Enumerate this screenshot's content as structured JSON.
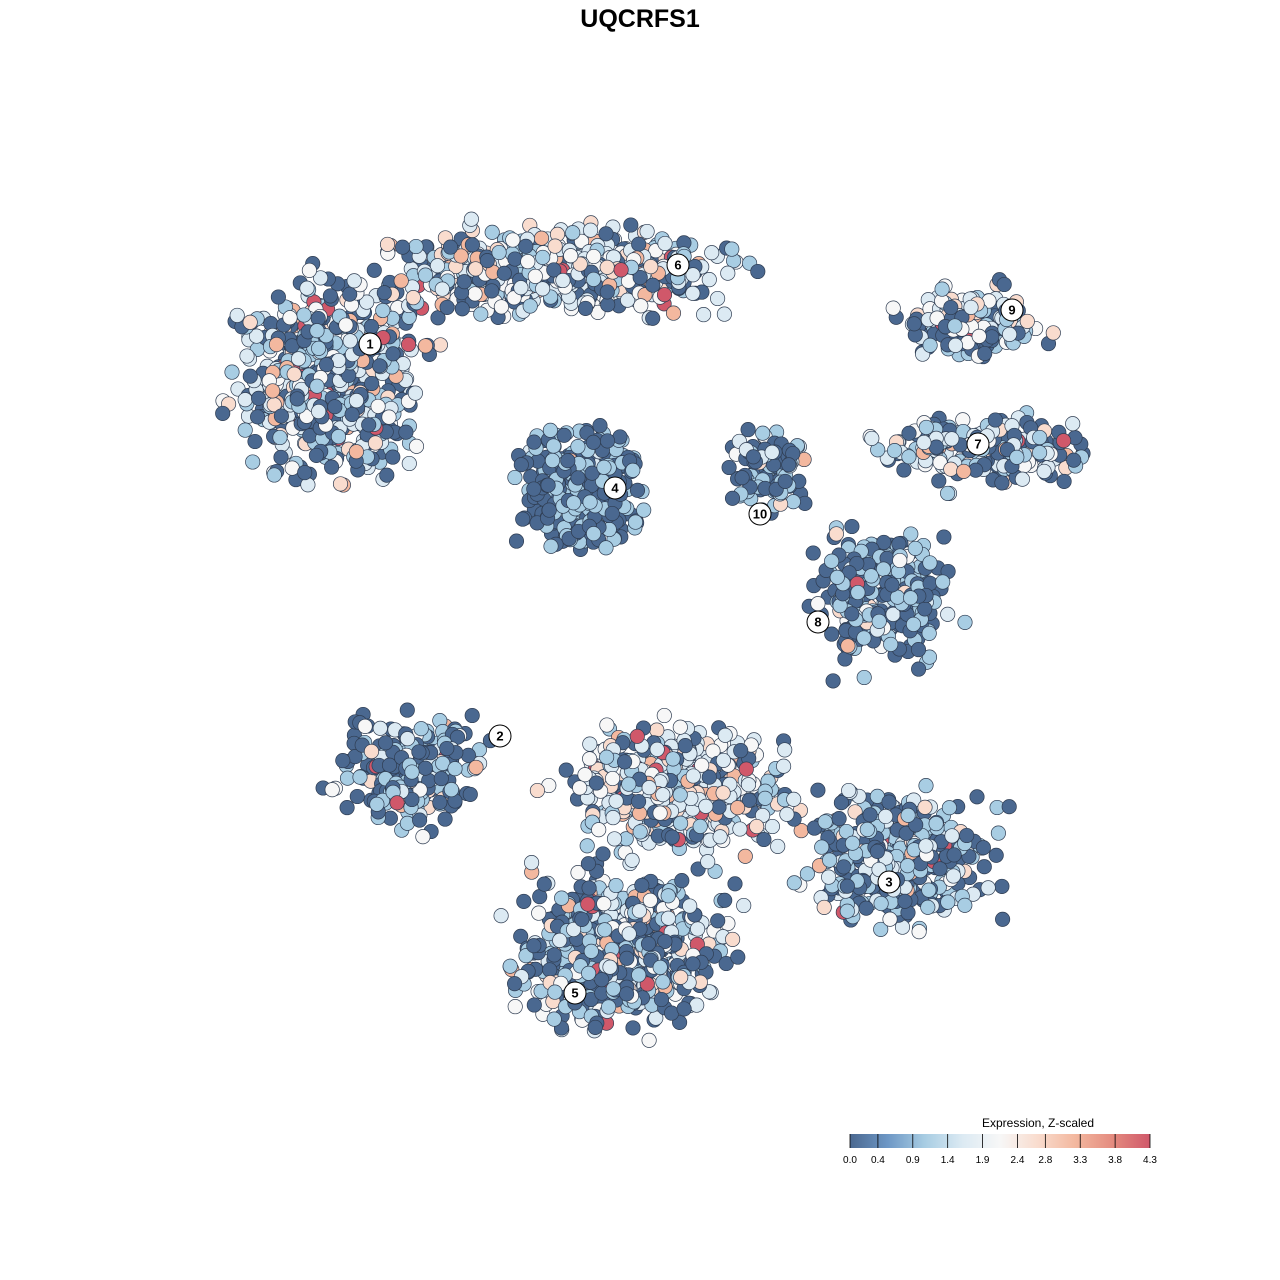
{
  "chart_data": {
    "type": "scatter",
    "title": "UQCRFS1",
    "xlabel": "",
    "ylabel": "",
    "grid": false,
    "legend": {
      "title": "Expression, Z-scaled",
      "placement": "bottom-right",
      "ticks": [
        "0.0",
        "0.4",
        "0.9",
        "1.4",
        "1.9",
        "2.4",
        "2.8",
        "3.3",
        "3.8",
        "4.3"
      ],
      "range": [
        0.0,
        4.3
      ],
      "colors": [
        "#4a6890",
        "#6d97c5",
        "#a8cde3",
        "#dceaf3",
        "#f7f7f7",
        "#f9dcce",
        "#f3b89f",
        "#e48b7f",
        "#d0586a"
      ]
    },
    "clusters": [
      {
        "label": "1"
      },
      {
        "label": "2"
      },
      {
        "label": "3"
      },
      {
        "label": "4"
      },
      {
        "label": "5"
      },
      {
        "label": "6"
      },
      {
        "label": "7"
      },
      {
        "label": "8"
      },
      {
        "label": "9"
      },
      {
        "label": "10"
      }
    ],
    "point_style": "circles colored by expression level, dark gray outline"
  }
}
